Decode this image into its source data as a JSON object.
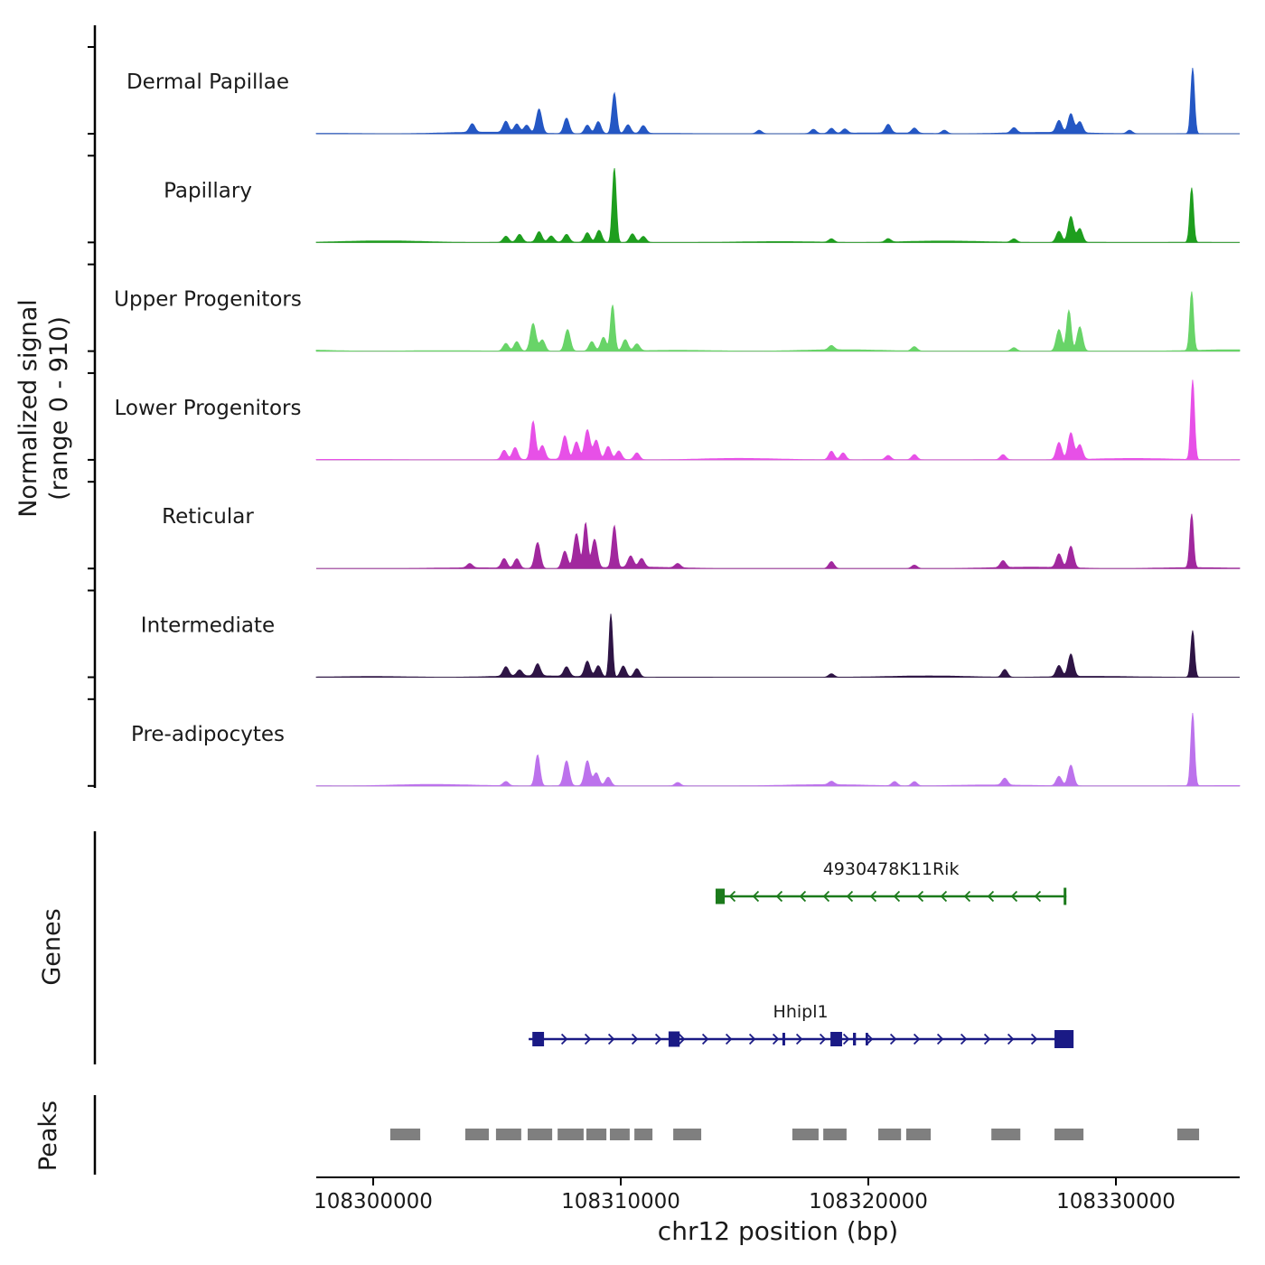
{
  "sections": {
    "genes_label": "Genes",
    "peaks_label": "Peaks"
  },
  "chart_data": {
    "type": "area",
    "title": "",
    "xlabel": "chr12 position (bp)",
    "ylabel_line1": "Normalized signal",
    "ylabel_line2": "(range 0 - 910)",
    "y_range": [
      0,
      910
    ],
    "x_range": [
      108297700,
      108335000
    ],
    "x_ticks": [
      {
        "value": 108300000,
        "label": "108300000"
      },
      {
        "value": 108310000,
        "label": "108310000"
      },
      {
        "value": 108320000,
        "label": "108320000"
      },
      {
        "value": 108330000,
        "label": "108330000"
      }
    ],
    "tracks": [
      {
        "name": "Dermal Papillae",
        "color": "#2457c4",
        "peaks": [
          [
            108304000,
            0.1
          ],
          [
            108305360,
            0.13
          ],
          [
            108305800,
            0.1
          ],
          [
            108306200,
            0.09
          ],
          [
            108306700,
            0.28
          ],
          [
            108307810,
            0.18
          ],
          [
            108308650,
            0.1
          ],
          [
            108309090,
            0.14
          ],
          [
            108309740,
            0.47,
            90
          ],
          [
            108310290,
            0.1
          ],
          [
            108310910,
            0.09
          ],
          [
            108315590,
            0.04
          ],
          [
            108317780,
            0.05
          ],
          [
            108318510,
            0.06
          ],
          [
            108319050,
            0.05
          ],
          [
            108320800,
            0.1
          ],
          [
            108321860,
            0.06
          ],
          [
            108323070,
            0.04
          ],
          [
            108325880,
            0.06
          ],
          [
            108327700,
            0.14
          ],
          [
            108328180,
            0.22
          ],
          [
            108328540,
            0.13
          ],
          [
            108330550,
            0.04
          ],
          [
            108333100,
            0.76,
            75
          ]
        ]
      },
      {
        "name": "Papillary",
        "color": "#1e9e1e",
        "peaks": [
          [
            108305360,
            0.07
          ],
          [
            108305910,
            0.09
          ],
          [
            108306700,
            0.12
          ],
          [
            108307190,
            0.07
          ],
          [
            108307810,
            0.09
          ],
          [
            108308650,
            0.11
          ],
          [
            108309120,
            0.14
          ],
          [
            108309740,
            0.86,
            80
          ],
          [
            108310470,
            0.1
          ],
          [
            108310910,
            0.07
          ],
          [
            108318510,
            0.04
          ],
          [
            108320800,
            0.04
          ],
          [
            108325880,
            0.04
          ],
          [
            108327700,
            0.13
          ],
          [
            108328180,
            0.3
          ],
          [
            108328540,
            0.16
          ],
          [
            108333060,
            0.63,
            75
          ]
        ]
      },
      {
        "name": "Upper Progenitors",
        "color": "#68d468",
        "peaks": [
          [
            108305360,
            0.09
          ],
          [
            108305800,
            0.11
          ],
          [
            108306460,
            0.32
          ],
          [
            108306830,
            0.13
          ],
          [
            108307850,
            0.25
          ],
          [
            108308830,
            0.11
          ],
          [
            108309300,
            0.16
          ],
          [
            108309670,
            0.53,
            85
          ],
          [
            108310180,
            0.13
          ],
          [
            108310650,
            0.08
          ],
          [
            108318510,
            0.05
          ],
          [
            108321860,
            0.05
          ],
          [
            108325880,
            0.04
          ],
          [
            108327700,
            0.25
          ],
          [
            108328100,
            0.47,
            90
          ],
          [
            108328540,
            0.28
          ],
          [
            108333060,
            0.68,
            75
          ]
        ]
      },
      {
        "name": "Lower Progenitors",
        "color": "#e750e7",
        "peaks": [
          [
            108305290,
            0.11
          ],
          [
            108305730,
            0.14
          ],
          [
            108306460,
            0.44,
            95
          ],
          [
            108306830,
            0.16
          ],
          [
            108307740,
            0.27
          ],
          [
            108308210,
            0.2
          ],
          [
            108308650,
            0.34
          ],
          [
            108309010,
            0.22
          ],
          [
            108309490,
            0.15
          ],
          [
            108309920,
            0.1
          ],
          [
            108310650,
            0.08
          ],
          [
            108318510,
            0.1
          ],
          [
            108318980,
            0.08
          ],
          [
            108320800,
            0.05
          ],
          [
            108321860,
            0.06
          ],
          [
            108325440,
            0.06
          ],
          [
            108327700,
            0.2
          ],
          [
            108328180,
            0.31
          ],
          [
            108328540,
            0.17
          ],
          [
            108333100,
            0.92,
            75
          ]
        ]
      },
      {
        "name": "Reticular",
        "color": "#a1289e",
        "peaks": [
          [
            108303900,
            0.05
          ],
          [
            108305290,
            0.11
          ],
          [
            108305800,
            0.11
          ],
          [
            108306640,
            0.3
          ],
          [
            108307740,
            0.2
          ],
          [
            108308210,
            0.4
          ],
          [
            108308580,
            0.52,
            85
          ],
          [
            108308940,
            0.33
          ],
          [
            108309740,
            0.48,
            90
          ],
          [
            108310400,
            0.13
          ],
          [
            108310840,
            0.1
          ],
          [
            108312300,
            0.05
          ],
          [
            108318510,
            0.08
          ],
          [
            108321860,
            0.04
          ],
          [
            108325440,
            0.08
          ],
          [
            108327700,
            0.16
          ],
          [
            108328180,
            0.25
          ],
          [
            108333060,
            0.62,
            75
          ]
        ]
      },
      {
        "name": "Intermediate",
        "color": "#2e1445",
        "peaks": [
          [
            108305360,
            0.11
          ],
          [
            108305910,
            0.07
          ],
          [
            108306640,
            0.14
          ],
          [
            108307810,
            0.11
          ],
          [
            108308650,
            0.18
          ],
          [
            108309090,
            0.13
          ],
          [
            108309600,
            0.73,
            70
          ],
          [
            108310100,
            0.13
          ],
          [
            108310650,
            0.1
          ],
          [
            108318510,
            0.04
          ],
          [
            108325510,
            0.09
          ],
          [
            108327700,
            0.13
          ],
          [
            108328180,
            0.26
          ],
          [
            108333100,
            0.54,
            75
          ]
        ]
      },
      {
        "name": "Pre-adipocytes",
        "color": "#bc72ec",
        "peaks": [
          [
            108305360,
            0.05
          ],
          [
            108306640,
            0.36,
            95
          ],
          [
            108307810,
            0.29
          ],
          [
            108308650,
            0.29
          ],
          [
            108309010,
            0.15
          ],
          [
            108309490,
            0.1
          ],
          [
            108312300,
            0.04
          ],
          [
            108318510,
            0.04
          ],
          [
            108321060,
            0.05
          ],
          [
            108321860,
            0.05
          ],
          [
            108325510,
            0.08
          ],
          [
            108327700,
            0.11
          ],
          [
            108328180,
            0.24
          ],
          [
            108333100,
            0.84,
            75
          ]
        ]
      }
    ],
    "genes": [
      {
        "name": "4930478K11Rik",
        "color": "#1b7a1b",
        "strand": "-",
        "start": 108313830,
        "end": 108328000,
        "exons": [
          [
            108313830,
            108314200,
            17
          ],
          [
            108327890,
            108328000,
            19
          ]
        ]
      },
      {
        "name": "Hhipl1",
        "color": "#1a1a85",
        "strand": "+",
        "start": 108306280,
        "end": 108328250,
        "exons": [
          [
            108306430,
            108306900,
            16
          ],
          [
            108311930,
            108312380,
            17
          ],
          [
            108316530,
            108316640,
            14
          ],
          [
            108318470,
            108318940,
            16
          ],
          [
            108319380,
            108319500,
            14
          ],
          [
            108319890,
            108319990,
            14
          ],
          [
            108327520,
            108328290,
            20
          ]
        ]
      }
    ],
    "peaks_track": [
      [
        108300690,
        108301900
      ],
      [
        108303720,
        108304670
      ],
      [
        108304960,
        108305980
      ],
      [
        108306240,
        108307230
      ],
      [
        108307450,
        108308500
      ],
      [
        108308610,
        108309420
      ],
      [
        108309560,
        108310360
      ],
      [
        108310550,
        108311280
      ],
      [
        108312120,
        108313250
      ],
      [
        108316930,
        108317990
      ],
      [
        108318180,
        108319120
      ],
      [
        108320400,
        108321320
      ],
      [
        108321530,
        108322520
      ],
      [
        108324970,
        108326140
      ],
      [
        108327520,
        108328690
      ],
      [
        108332480,
        108333360
      ]
    ]
  }
}
